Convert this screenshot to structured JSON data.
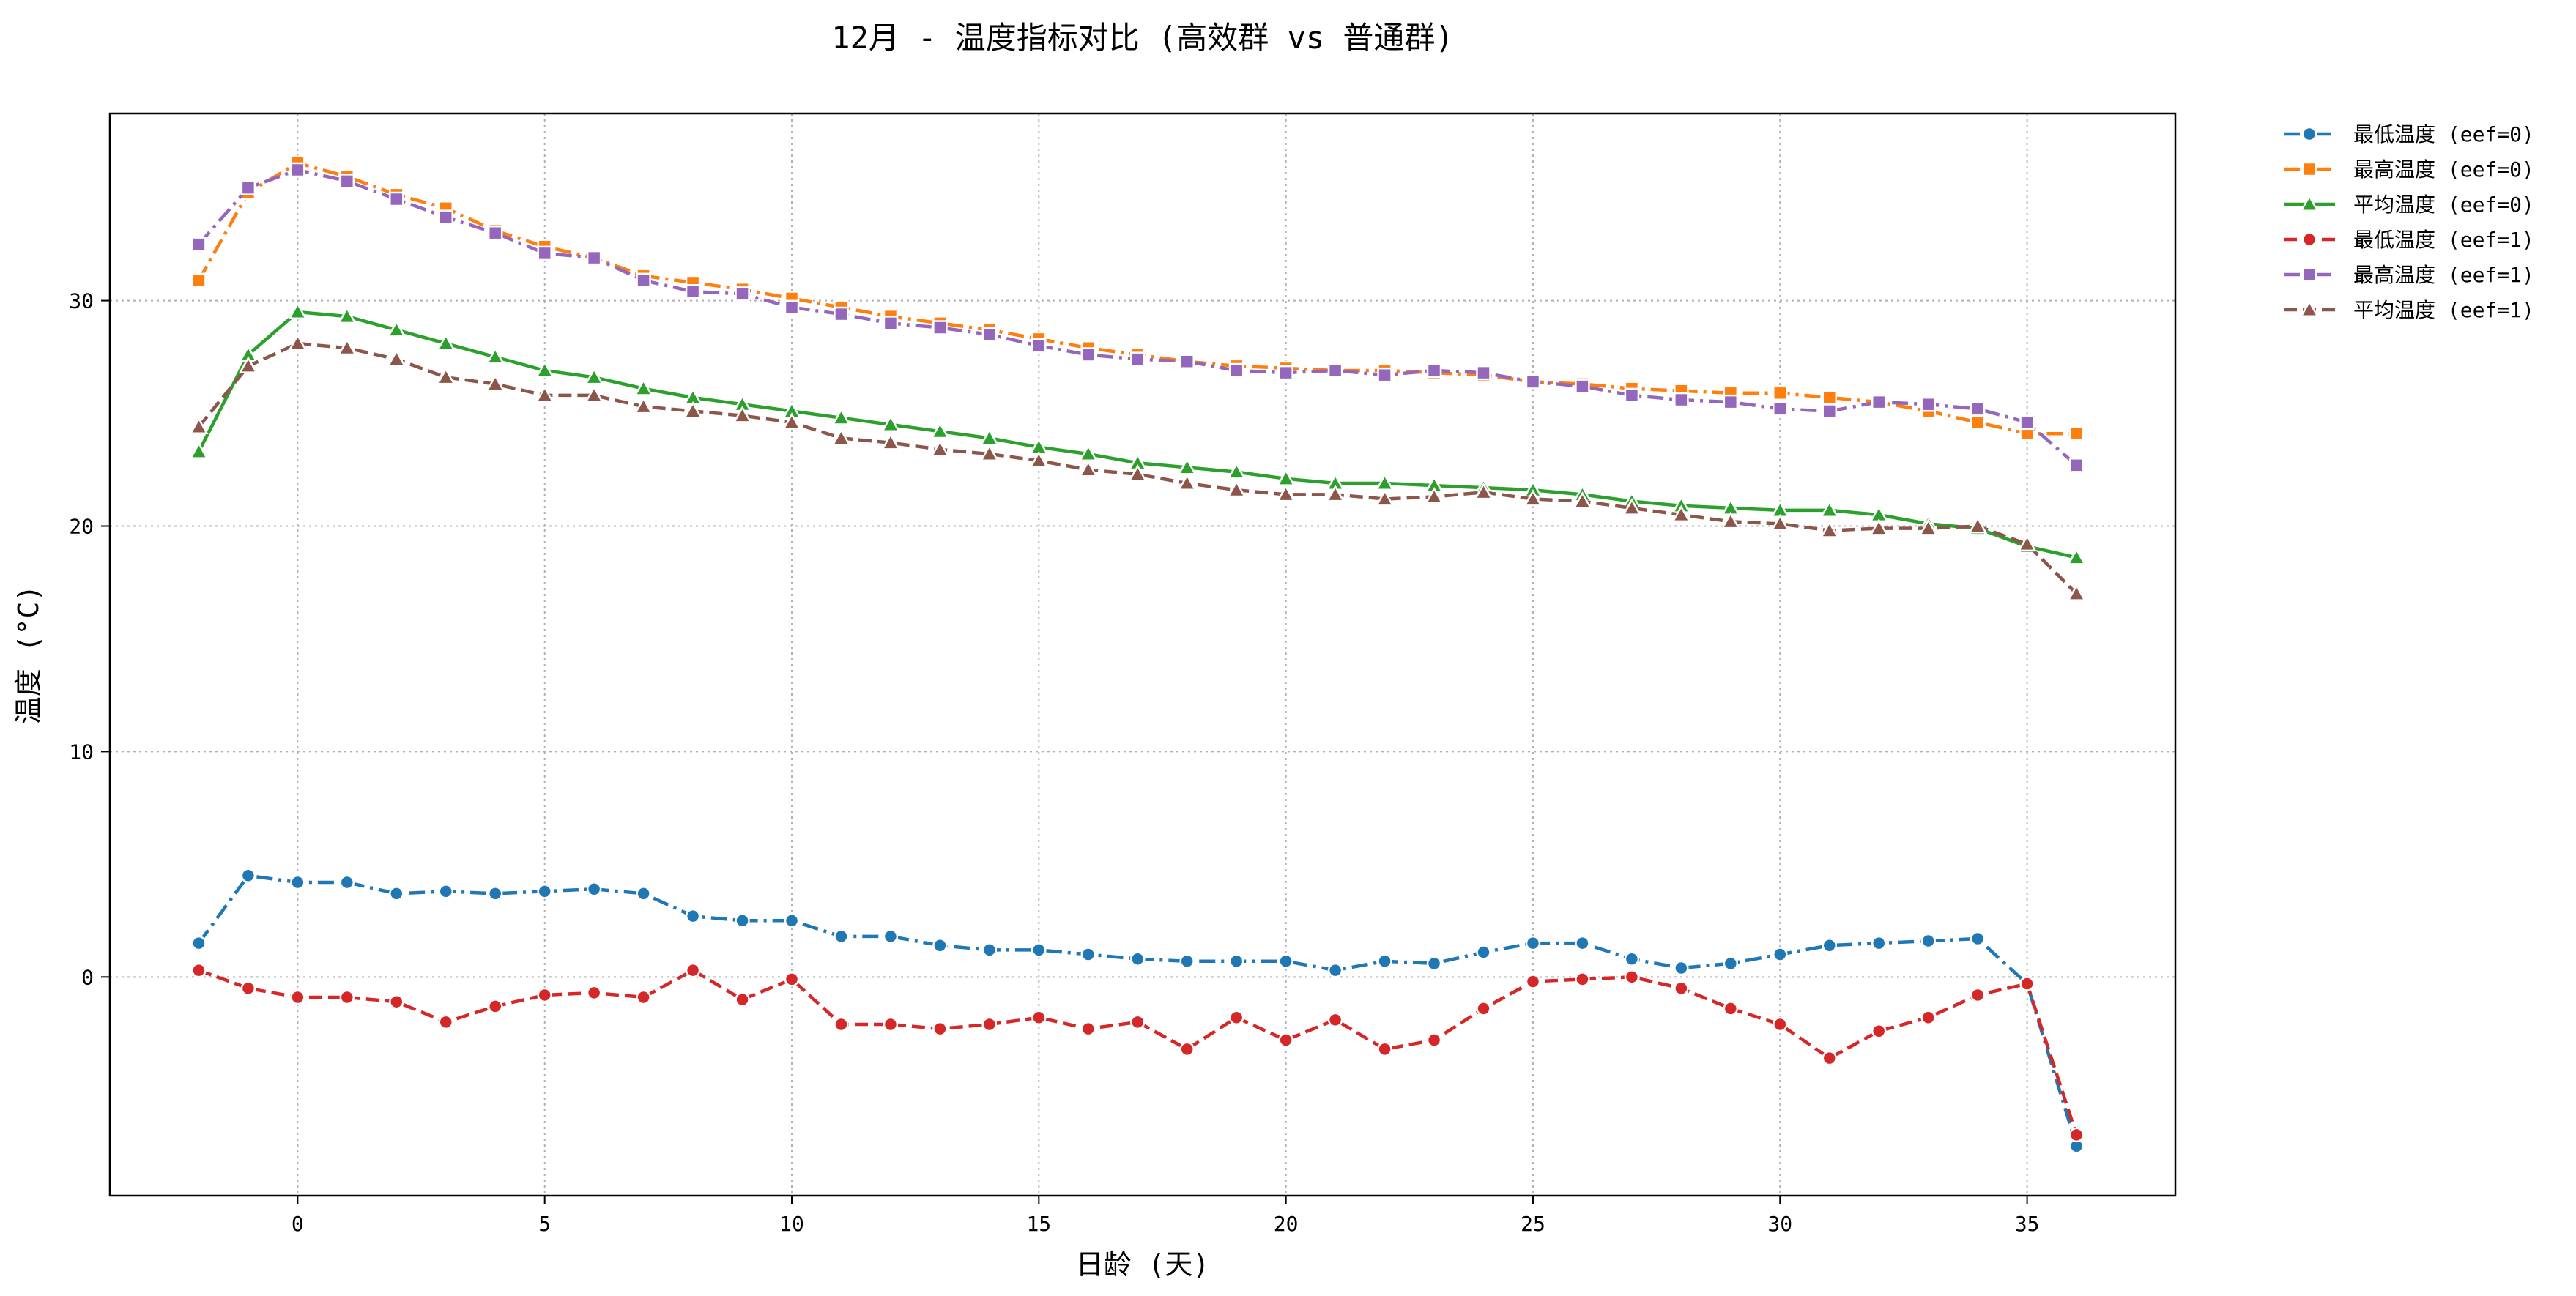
{
  "chart_data": {
    "type": "line",
    "title": "12月 - 温度指标对比 (高效群 vs 普通群)",
    "xlabel": "日龄 (天)",
    "ylabel": "温度 (°C)",
    "xlim": [
      -3.8,
      38
    ],
    "ylim": [
      -9.7,
      38.3
    ],
    "x_ticks": [
      0,
      5,
      10,
      15,
      20,
      25,
      30,
      35
    ],
    "y_ticks": [
      0,
      10,
      20,
      30
    ],
    "grid": true,
    "legend_position": "outside-top-right",
    "x": [
      -2,
      -1,
      0,
      1,
      2,
      3,
      4,
      5,
      6,
      7,
      8,
      9,
      10,
      11,
      12,
      13,
      14,
      15,
      16,
      17,
      18,
      19,
      20,
      21,
      22,
      23,
      24,
      25,
      26,
      27,
      28,
      29,
      30,
      31,
      32,
      33,
      34,
      35,
      36
    ],
    "series": [
      {
        "name": "最低温度 (eef=0)",
        "color": "#1f77b4",
        "marker": "circle",
        "dash": "dashdot",
        "values": [
          1.5,
          4.5,
          4.2,
          4.2,
          3.7,
          3.8,
          3.7,
          3.8,
          3.9,
          3.7,
          2.7,
          2.5,
          2.5,
          1.8,
          1.8,
          1.4,
          1.2,
          1.2,
          1.0,
          0.8,
          0.7,
          0.7,
          0.7,
          0.3,
          0.7,
          0.6,
          1.1,
          1.5,
          1.5,
          0.8,
          0.4,
          0.6,
          1.0,
          1.4,
          1.5,
          1.6,
          1.7,
          -0.3,
          -7.5
        ]
      },
      {
        "name": "最高温度 (eef=0)",
        "color": "#ff7f0e",
        "marker": "square",
        "dash": "dashdot",
        "values": [
          30.9,
          34.8,
          36.1,
          35.5,
          34.7,
          34.1,
          33.1,
          32.4,
          31.9,
          31.1,
          30.8,
          30.5,
          30.1,
          29.7,
          29.3,
          29.0,
          28.7,
          28.3,
          27.9,
          27.6,
          27.3,
          27.1,
          27.0,
          26.9,
          26.9,
          26.8,
          26.7,
          26.4,
          26.3,
          26.1,
          26.0,
          25.9,
          25.9,
          25.7,
          25.5,
          25.1,
          24.6,
          24.1,
          24.1
        ]
      },
      {
        "name": "平均温度 (eef=0)",
        "color": "#2ca02c",
        "marker": "triangle",
        "dash": "solid",
        "values": [
          23.3,
          27.6,
          29.5,
          29.3,
          28.7,
          28.1,
          27.5,
          26.9,
          26.6,
          26.1,
          25.7,
          25.4,
          25.1,
          24.8,
          24.5,
          24.2,
          23.9,
          23.5,
          23.2,
          22.8,
          22.6,
          22.4,
          22.1,
          21.9,
          21.9,
          21.8,
          21.7,
          21.6,
          21.4,
          21.1,
          20.9,
          20.8,
          20.7,
          20.7,
          20.5,
          20.1,
          19.9,
          19.1,
          18.6
        ]
      },
      {
        "name": "最低温度 (eef=1)",
        "color": "#d62728",
        "marker": "circle",
        "dash": "dashed",
        "values": [
          0.3,
          -0.5,
          -0.9,
          -0.9,
          -1.1,
          -2.0,
          -1.3,
          -0.8,
          -0.7,
          -0.9,
          0.3,
          -1.0,
          -0.1,
          -2.1,
          -2.1,
          -2.3,
          -2.1,
          -1.8,
          -2.3,
          -2.0,
          -3.2,
          -1.8,
          -2.8,
          -1.9,
          -3.2,
          -2.8,
          -1.4,
          -0.2,
          -0.1,
          0.0,
          -0.5,
          -1.4,
          -2.1,
          -3.6,
          -2.4,
          -1.8,
          -0.8,
          -0.3,
          -7.0
        ]
      },
      {
        "name": "最高温度 (eef=1)",
        "color": "#9467bd",
        "marker": "square",
        "dash": "dashdot",
        "values": [
          32.5,
          35.0,
          35.8,
          35.3,
          34.5,
          33.7,
          33.0,
          32.1,
          31.9,
          30.9,
          30.4,
          30.3,
          29.7,
          29.4,
          29.0,
          28.8,
          28.5,
          28.0,
          27.6,
          27.4,
          27.3,
          26.9,
          26.8,
          26.9,
          26.7,
          26.9,
          26.8,
          26.4,
          26.2,
          25.8,
          25.6,
          25.5,
          25.2,
          25.1,
          25.5,
          25.4,
          25.2,
          24.6,
          22.7
        ]
      },
      {
        "name": "平均温度 (eef=1)",
        "color": "#8c564b",
        "marker": "triangle",
        "dash": "dashed",
        "values": [
          24.4,
          27.1,
          28.1,
          27.9,
          27.4,
          26.6,
          26.3,
          25.8,
          25.8,
          25.3,
          25.1,
          24.9,
          24.6,
          23.9,
          23.7,
          23.4,
          23.2,
          22.9,
          22.5,
          22.3,
          21.9,
          21.6,
          21.4,
          21.4,
          21.2,
          21.3,
          21.5,
          21.2,
          21.1,
          20.8,
          20.5,
          20.2,
          20.1,
          19.8,
          19.9,
          19.9,
          20.0,
          19.2,
          17.0
        ]
      }
    ]
  }
}
